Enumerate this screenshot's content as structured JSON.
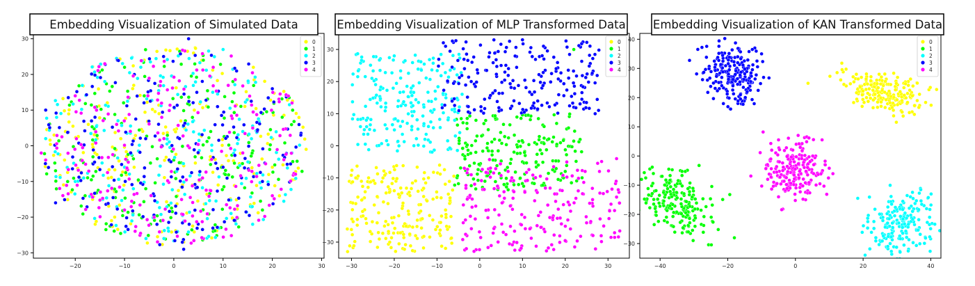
{
  "palette": {
    "0": "#ffff00",
    "1": "#00ff00",
    "2": "#00ffff",
    "3": "#0000ff",
    "4": "#ff00ff"
  },
  "chart_data": [
    {
      "type": "scatter",
      "title": "Embedding Visualization of Simulated Data",
      "xlabel": "",
      "ylabel": "",
      "xlim": [
        -28.5,
        30.5
      ],
      "ylim": [
        -31.5,
        31.5
      ],
      "xticks": [
        -20,
        -10,
        0,
        10,
        20,
        30
      ],
      "yticks": [
        -30,
        -20,
        -10,
        0,
        10,
        20,
        30
      ],
      "grid": false,
      "legend_position": "top-right",
      "series": [
        {
          "name": "0",
          "distribution": "disk",
          "center": [
            0,
            0
          ],
          "radius": [
            27,
            28
          ],
          "count": 200,
          "points": [
            [
              -6,
              24
            ],
            [
              4,
              26
            ],
            [
              -12,
              -20
            ],
            [
              20,
              -6
            ],
            [
              -22,
              4
            ],
            [
              2,
              -27
            ],
            [
              15,
              13
            ],
            [
              -3,
              9
            ],
            [
              9,
              -11
            ],
            [
              -16,
              -2
            ]
          ]
        },
        {
          "name": "1",
          "distribution": "disk",
          "center": [
            0,
            0
          ],
          "radius": [
            27,
            28
          ],
          "count": 200,
          "points": [
            [
              -10,
              22
            ],
            [
              6,
              24
            ],
            [
              -18,
              -14
            ],
            [
              18,
              -18
            ],
            [
              -24,
              -7
            ],
            [
              12,
              18
            ],
            [
              0,
              -4
            ],
            [
              -6,
              14
            ],
            [
              8,
              -24
            ],
            [
              22,
              8
            ]
          ]
        },
        {
          "name": "2",
          "distribution": "disk",
          "center": [
            0,
            0
          ],
          "radius": [
            27,
            28
          ],
          "count": 200,
          "points": [
            [
              -14,
              18
            ],
            [
              10,
              27
            ],
            [
              -20,
              -10
            ],
            [
              16,
              -22
            ],
            [
              24,
              -2
            ],
            [
              -2,
              -26
            ],
            [
              4,
              7
            ],
            [
              -26,
              2
            ],
            [
              14,
              4
            ],
            [
              -10,
              -6
            ]
          ]
        },
        {
          "name": "3",
          "distribution": "disk",
          "center": [
            0,
            0
          ],
          "radius": [
            27,
            28
          ],
          "count": 200,
          "points": [
            [
              3,
              30
            ],
            [
              -8,
              20
            ],
            [
              -24,
              -16
            ],
            [
              20,
              16
            ],
            [
              2,
              -29
            ],
            [
              -16,
              8
            ],
            [
              10,
              -6
            ],
            [
              -4,
              -14
            ],
            [
              18,
              -10
            ],
            [
              -26,
              10
            ]
          ]
        },
        {
          "name": "4",
          "distribution": "disk",
          "center": [
            0,
            0
          ],
          "radius": [
            27,
            28
          ],
          "count": 200,
          "points": [
            [
              -14,
              23
            ],
            [
              8,
              22
            ],
            [
              -26,
              -4
            ],
            [
              24,
              12
            ],
            [
              6,
              -26
            ],
            [
              -10,
              -18
            ],
            [
              14,
              -2
            ],
            [
              -2,
              2
            ],
            [
              20,
              -14
            ],
            [
              -20,
              14
            ]
          ]
        }
      ]
    },
    {
      "type": "scatter",
      "title": "Embedding Visualization of MLP Transformed Data",
      "xlabel": "",
      "ylabel": "",
      "xlim": [
        -33,
        35
      ],
      "ylim": [
        -35,
        35
      ],
      "xticks": [
        -30,
        -20,
        -10,
        0,
        10,
        20,
        30
      ],
      "yticks": [
        -30,
        -20,
        -10,
        0,
        10,
        20,
        30
      ],
      "grid": false,
      "legend_position": "top-right",
      "series": [
        {
          "name": "0",
          "distribution": "region",
          "region": [
            [
              -31,
              -33
            ],
            [
              -6,
              -6
            ]
          ],
          "count": 200,
          "points": [
            [
              -29,
              -18
            ],
            [
              -24,
              -24
            ],
            [
              -18,
              -32
            ],
            [
              -15,
              -28
            ],
            [
              -12,
              -10
            ],
            [
              -8,
              -20
            ],
            [
              -20,
              -14
            ],
            [
              -26,
              -10
            ]
          ]
        },
        {
          "name": "1",
          "distribution": "region",
          "region": [
            [
              -6,
              -14
            ],
            [
              24,
              10
            ]
          ],
          "count": 200,
          "points": [
            [
              -3,
              7
            ],
            [
              2,
              5
            ],
            [
              10,
              -5
            ],
            [
              18,
              0
            ],
            [
              22,
              30
            ],
            [
              20,
              -8
            ],
            [
              5,
              -10
            ],
            [
              0,
              -6
            ]
          ]
        },
        {
          "name": "2",
          "distribution": "region",
          "region": [
            [
              -30,
              -2
            ],
            [
              -4,
              29
            ]
          ],
          "count": 200,
          "points": [
            [
              -27,
              5
            ],
            [
              -20,
              28
            ],
            [
              -16,
              18
            ],
            [
              -12,
              6
            ],
            [
              -8,
              16
            ],
            [
              -22,
              12
            ],
            [
              -24,
              0
            ],
            [
              -6,
              24
            ]
          ]
        },
        {
          "name": "3",
          "distribution": "region",
          "region": [
            [
              -10,
              10
            ],
            [
              28,
              33
            ]
          ],
          "count": 200,
          "points": [
            [
              -8,
              31
            ],
            [
              -2,
              20
            ],
            [
              5,
              25
            ],
            [
              10,
              33
            ],
            [
              15,
              27
            ],
            [
              22,
              12
            ],
            [
              27,
              10
            ],
            [
              8,
              14
            ]
          ]
        },
        {
          "name": "4",
          "distribution": "region",
          "region": [
            [
              -4,
              -33
            ],
            [
              33,
              -4
            ]
          ],
          "count": 200,
          "points": [
            [
              -3,
              -28
            ],
            [
              2,
              -20
            ],
            [
              8,
              -30
            ],
            [
              15,
              -26
            ],
            [
              25,
              -24
            ],
            [
              28,
              -8
            ],
            [
              32,
              -4
            ],
            [
              18,
              -15
            ]
          ]
        }
      ]
    },
    {
      "type": "scatter",
      "title": "Embedding Visualization of KAN Transformed Data",
      "xlabel": "",
      "ylabel": "",
      "xlim": [
        -46,
        43
      ],
      "ylim": [
        -35,
        42
      ],
      "xticks": [
        -40,
        -20,
        0,
        20,
        40
      ],
      "yticks": [
        -30,
        -20,
        -10,
        0,
        10,
        20,
        30,
        40
      ],
      "grid": false,
      "legend_position": "top-right",
      "series": [
        {
          "name": "0",
          "distribution": "cluster",
          "center": [
            26,
            22
          ],
          "spread": [
            7,
            3
          ],
          "tilt": -0.25,
          "count": 200,
          "points": [
            [
              15,
              24
            ],
            [
              18,
              28
            ],
            [
              25,
              26
            ],
            [
              33,
              18
            ],
            [
              36,
              19
            ],
            [
              21,
              20
            ]
          ]
        },
        {
          "name": "1",
          "distribution": "cluster",
          "center": [
            -35,
            -16
          ],
          "spread": [
            4,
            6
          ],
          "tilt": 0.7,
          "count": 200,
          "points": [
            [
              -42,
              -6
            ],
            [
              -38,
              -9
            ],
            [
              -34,
              -5
            ],
            [
              -30,
              -22
            ],
            [
              -32,
              -26
            ],
            [
              -37,
              -18
            ]
          ]
        },
        {
          "name": "2",
          "distribution": "cluster",
          "center": [
            31,
            -23
          ],
          "spread": [
            4.5,
            5
          ],
          "tilt": -0.6,
          "count": 200,
          "points": [
            [
              25,
              -29
            ],
            [
              28,
              -30
            ],
            [
              32,
              -16
            ],
            [
              38,
              -17
            ],
            [
              34,
              -14
            ],
            [
              30,
              -22
            ]
          ]
        },
        {
          "name": "3",
          "distribution": "cluster",
          "center": [
            -18,
            28
          ],
          "spread": [
            4,
            6
          ],
          "tilt": 0.4,
          "count": 200,
          "points": [
            [
              -26,
              26
            ],
            [
              -20,
              20
            ],
            [
              -17,
              18
            ],
            [
              -12,
              37
            ],
            [
              -10,
              35
            ],
            [
              -15,
              30
            ]
          ]
        },
        {
          "name": "4",
          "distribution": "cluster",
          "center": [
            0,
            -5
          ],
          "spread": [
            4.5,
            5
          ],
          "tilt": 0,
          "count": 200,
          "points": [
            [
              -7,
              2
            ],
            [
              -5,
              -14
            ],
            [
              3,
              -15
            ],
            [
              6,
              0
            ],
            [
              8,
              -5
            ],
            [
              0,
              -8
            ]
          ]
        }
      ]
    }
  ]
}
